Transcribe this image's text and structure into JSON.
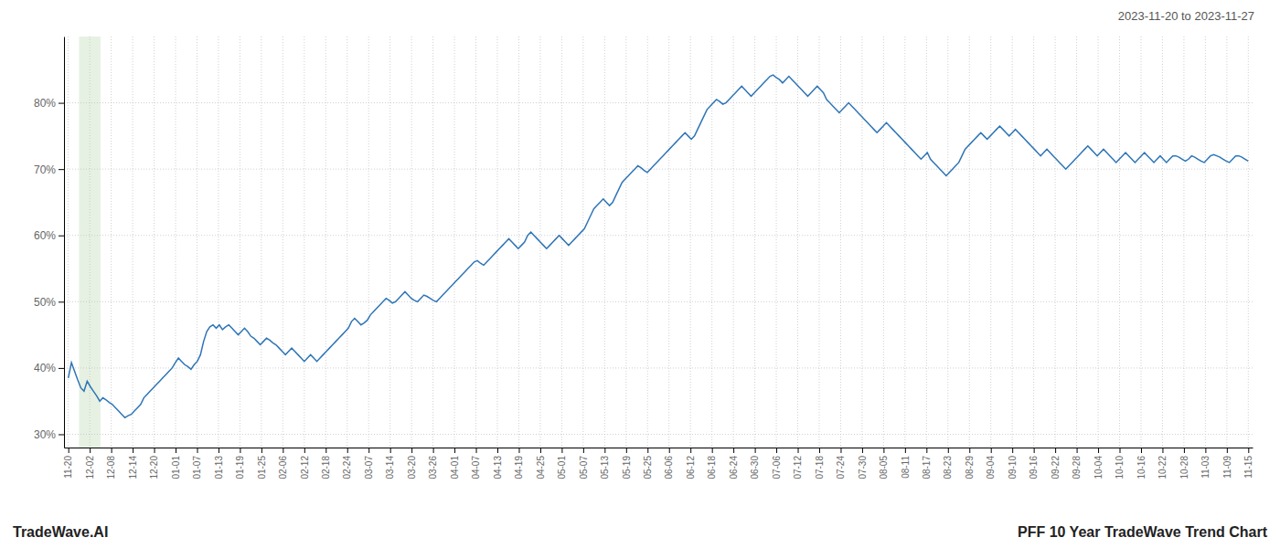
{
  "chart_data": {
    "type": "line",
    "title": "PFF 10 Year TradeWave Trend Chart",
    "subtitle": "2023-11-20 to 2023-11-27",
    "annotations": [
      "TradeWave.AI"
    ],
    "color": "#2e75b6",
    "grid": true,
    "highlight": {
      "start": 0.5,
      "end": 1.5,
      "color": "#d6e8d0"
    },
    "xlim": [
      -0.2,
      55.2
    ],
    "xticks": [
      {
        "value": 0,
        "label": "11-20"
      },
      {
        "value": 1,
        "label": "12-02"
      },
      {
        "value": 2,
        "label": "12-08"
      },
      {
        "value": 3,
        "label": "12-14"
      },
      {
        "value": 4,
        "label": "12-20"
      },
      {
        "value": 5,
        "label": "01-01"
      },
      {
        "value": 6,
        "label": "01-07"
      },
      {
        "value": 7,
        "label": "01-13"
      },
      {
        "value": 8,
        "label": "01-19"
      },
      {
        "value": 9,
        "label": "01-25"
      },
      {
        "value": 10,
        "label": "02-06"
      },
      {
        "value": 11,
        "label": "02-12"
      },
      {
        "value": 12,
        "label": "02-18"
      },
      {
        "value": 13,
        "label": "02-24"
      },
      {
        "value": 14,
        "label": "03-07"
      },
      {
        "value": 15,
        "label": "03-14"
      },
      {
        "value": 16,
        "label": "03-20"
      },
      {
        "value": 17,
        "label": "03-26"
      },
      {
        "value": 18,
        "label": "04-01"
      },
      {
        "value": 19,
        "label": "04-07"
      },
      {
        "value": 20,
        "label": "04-13"
      },
      {
        "value": 21,
        "label": "04-19"
      },
      {
        "value": 22,
        "label": "04-25"
      },
      {
        "value": 23,
        "label": "05-01"
      },
      {
        "value": 24,
        "label": "05-07"
      },
      {
        "value": 25,
        "label": "05-13"
      },
      {
        "value": 26,
        "label": "05-19"
      },
      {
        "value": 27,
        "label": "05-25"
      },
      {
        "value": 28,
        "label": "06-06"
      },
      {
        "value": 29,
        "label": "06-12"
      },
      {
        "value": 30,
        "label": "06-18"
      },
      {
        "value": 31,
        "label": "06-24"
      },
      {
        "value": 32,
        "label": "06-30"
      },
      {
        "value": 33,
        "label": "07-06"
      },
      {
        "value": 34,
        "label": "07-12"
      },
      {
        "value": 35,
        "label": "07-18"
      },
      {
        "value": 36,
        "label": "07-24"
      },
      {
        "value": 37,
        "label": "07-30"
      },
      {
        "value": 38,
        "label": "08-05"
      },
      {
        "value": 39,
        "label": "08-11"
      },
      {
        "value": 40,
        "label": "08-17"
      },
      {
        "value": 41,
        "label": "08-23"
      },
      {
        "value": 42,
        "label": "08-29"
      },
      {
        "value": 43,
        "label": "09-04"
      },
      {
        "value": 44,
        "label": "09-10"
      },
      {
        "value": 45,
        "label": "09-16"
      },
      {
        "value": 46,
        "label": "09-22"
      },
      {
        "value": 47,
        "label": "09-28"
      },
      {
        "value": 48,
        "label": "10-04"
      },
      {
        "value": 49,
        "label": "10-10"
      },
      {
        "value": 50,
        "label": "10-16"
      },
      {
        "value": 51,
        "label": "10-22"
      },
      {
        "value": 52,
        "label": "10-28"
      },
      {
        "value": 53,
        "label": "11-03"
      },
      {
        "value": 54,
        "label": "11-09"
      },
      {
        "value": 55,
        "label": "11-15"
      }
    ],
    "ylim": [
      28,
      90
    ],
    "yticks": [
      {
        "value": 30,
        "label": "30%"
      },
      {
        "value": 40,
        "label": "40%"
      },
      {
        "value": 50,
        "label": "50%"
      },
      {
        "value": 60,
        "label": "60%"
      },
      {
        "value": 70,
        "label": "70%"
      },
      {
        "value": 80,
        "label": "80%"
      }
    ],
    "values": [
      38.5,
      40.8,
      39.5,
      38.2,
      37.0,
      36.5,
      38.0,
      37.2,
      36.5,
      35.8,
      35.0,
      35.5,
      35.2,
      34.8,
      34.5,
      34.0,
      33.5,
      33.0,
      32.5,
      32.8,
      33.0,
      33.5,
      34.0,
      34.5,
      35.5,
      36.0,
      36.5,
      37.0,
      37.5,
      38.0,
      38.5,
      39.0,
      39.5,
      40.0,
      40.8,
      41.5,
      41.0,
      40.5,
      40.2,
      39.8,
      40.5,
      41.0,
      42.0,
      44.0,
      45.5,
      46.2,
      46.5,
      46.0,
      46.5,
      45.8,
      46.2,
      46.5,
      46.0,
      45.5,
      45.0,
      45.5,
      46.0,
      45.5,
      44.8,
      44.5,
      44.0,
      43.5,
      44.0,
      44.5,
      44.2,
      43.8,
      43.5,
      43.0,
      42.5,
      42.0,
      42.5,
      43.0,
      42.5,
      42.0,
      41.5,
      41.0,
      41.5,
      42.0,
      41.5,
      41.0,
      41.5,
      42.0,
      42.5,
      43.0,
      43.5,
      44.0,
      44.5,
      45.0,
      45.5,
      46.0,
      47.0,
      47.5,
      47.0,
      46.5,
      46.8,
      47.2,
      48.0,
      48.5,
      49.0,
      49.5,
      50.0,
      50.5,
      50.2,
      49.8,
      50.0,
      50.5,
      51.0,
      51.5,
      51.0,
      50.5,
      50.2,
      50.0,
      50.5,
      51.0,
      50.8,
      50.5,
      50.2,
      50.0,
      50.5,
      51.0,
      51.5,
      52.0,
      52.5,
      53.0,
      53.5,
      54.0,
      54.5,
      55.0,
      55.5,
      56.0,
      56.2,
      55.8,
      55.5,
      56.0,
      56.5,
      57.0,
      57.5,
      58.0,
      58.5,
      59.0,
      59.5,
      59.0,
      58.5,
      58.0,
      58.5,
      59.0,
      60.0,
      60.5,
      60.0,
      59.5,
      59.0,
      58.5,
      58.0,
      58.5,
      59.0,
      59.5,
      60.0,
      59.5,
      59.0,
      58.5,
      59.0,
      59.5,
      60.0,
      60.5,
      61.0,
      62.0,
      63.0,
      64.0,
      64.5,
      65.0,
      65.5,
      65.0,
      64.5,
      65.0,
      66.0,
      67.0,
      68.0,
      68.5,
      69.0,
      69.5,
      70.0,
      70.5,
      70.2,
      69.8,
      69.5,
      70.0,
      70.5,
      71.0,
      71.5,
      72.0,
      72.5,
      73.0,
      73.5,
      74.0,
      74.5,
      75.0,
      75.5,
      75.0,
      74.5,
      75.0,
      76.0,
      77.0,
      78.0,
      79.0,
      79.5,
      80.0,
      80.5,
      80.2,
      79.8,
      80.0,
      80.5,
      81.0,
      81.5,
      82.0,
      82.5,
      82.0,
      81.5,
      81.0,
      81.5,
      82.0,
      82.5,
      83.0,
      83.5,
      84.0,
      84.2,
      83.8,
      83.5,
      83.0,
      83.5,
      84.0,
      83.5,
      83.0,
      82.5,
      82.0,
      81.5,
      81.0,
      81.5,
      82.0,
      82.5,
      82.0,
      81.5,
      80.5,
      80.0,
      79.5,
      79.0,
      78.5,
      79.0,
      79.5,
      80.0,
      79.5,
      79.0,
      78.5,
      78.0,
      77.5,
      77.0,
      76.5,
      76.0,
      75.5,
      76.0,
      76.5,
      77.0,
      76.5,
      76.0,
      75.5,
      75.0,
      74.5,
      74.0,
      73.5,
      73.0,
      72.5,
      72.0,
      71.5,
      72.0,
      72.5,
      71.5,
      71.0,
      70.5,
      70.0,
      69.5,
      69.0,
      69.5,
      70.0,
      70.5,
      71.0,
      72.0,
      73.0,
      73.5,
      74.0,
      74.5,
      75.0,
      75.5,
      75.0,
      74.5,
      75.0,
      75.5,
      76.0,
      76.5,
      76.0,
      75.5,
      75.0,
      75.5,
      76.0,
      75.5,
      75.0,
      74.5,
      74.0,
      73.5,
      73.0,
      72.5,
      72.0,
      72.5,
      73.0,
      72.5,
      72.0,
      71.5,
      71.0,
      70.5,
      70.0,
      70.5,
      71.0,
      71.5,
      72.0,
      72.5,
      73.0,
      73.5,
      73.0,
      72.5,
      72.0,
      72.5,
      73.0,
      72.5,
      72.0,
      71.5,
      71.0,
      71.5,
      72.0,
      72.5,
      72.0,
      71.5,
      71.0,
      71.5,
      72.0,
      72.5,
      72.0,
      71.5,
      71.0,
      71.5,
      72.0,
      71.5,
      71.0,
      71.5,
      72.0,
      72.0,
      71.8,
      71.5,
      71.2,
      71.5,
      72.0,
      71.8,
      71.5,
      71.2,
      71.0,
      71.5,
      72.0,
      72.2,
      72.0,
      71.8,
      71.5,
      71.2,
      71.0,
      71.5,
      72.0,
      72.0,
      71.8,
      71.5,
      71.2
    ]
  }
}
